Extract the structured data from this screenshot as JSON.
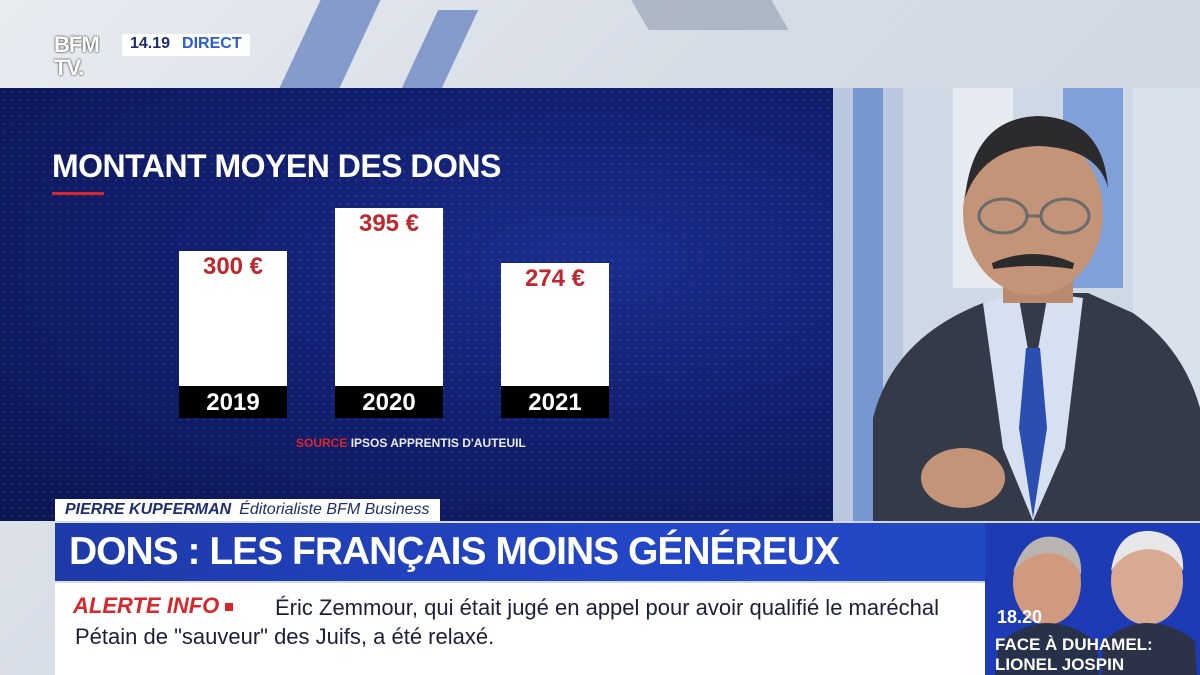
{
  "channel": {
    "logo_line1": "BFM",
    "logo_line2": "TV.",
    "time": "14.19",
    "live": "DIRECT"
  },
  "graphic": {
    "title": "MONTANT MOYEN DES DONS",
    "source_key": "SOURCE",
    "source_value": "IPSOS APPRENTIS D'AUTEUIL"
  },
  "chart_data": {
    "type": "bar",
    "title": "MONTANT MOYEN DES DONS",
    "categories": [
      "2019",
      "2020",
      "2021"
    ],
    "values": [
      300,
      395,
      274
    ],
    "value_labels": [
      "300 €",
      "395 €",
      "274 €"
    ],
    "ylim": [
      0,
      395
    ],
    "grid": false,
    "bar_color": "#ffffff",
    "label_color": "#c0272d"
  },
  "lower_third": {
    "name": "PIERRE KUPFERMAN",
    "role": "Éditorialiste BFM Business",
    "headline": "DONS : LES FRANÇAIS MOINS GÉNÉREUX"
  },
  "alert": {
    "label": "ALERTE INFO",
    "text": "Éric Zemmour, qui était jugé en appel pour avoir qualifié le maréchal Pétain de \"sauveur\" des Juifs, a été relaxé."
  },
  "promo": {
    "time": "18.20",
    "line1": "FACE À DUHAMEL:",
    "line2": "LIONEL JOSPIN"
  },
  "colors": {
    "brand_blue": "#1e3aa8",
    "alert_red": "#d8262b",
    "panel_navy": "#121f70"
  }
}
